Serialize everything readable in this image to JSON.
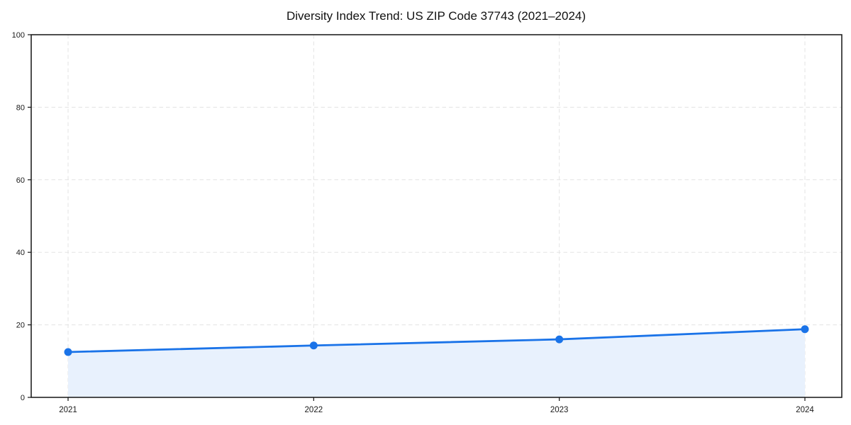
{
  "chart_data": {
    "type": "line",
    "title": "Diversity Index Trend: US ZIP Code 37743 (2021–2024)",
    "categories": [
      "2021",
      "2022",
      "2023",
      "2024"
    ],
    "series": [
      {
        "name": "Diversity Index",
        "values": [
          12.5,
          14.3,
          16.0,
          18.8
        ]
      }
    ],
    "xlabel": "",
    "ylabel": "",
    "ylim": [
      0,
      100
    ],
    "yticks": [
      0,
      20,
      40,
      60,
      80,
      100
    ],
    "grid": "dashed both axes",
    "legend": "none",
    "marker": "circle",
    "colors": {
      "line": "#1a73e8",
      "marker": "#1a73e8",
      "area_fill": "#e8f1fd",
      "gridline": "#e3e3e3",
      "spine": "#141414",
      "text": "#1a1a1a"
    }
  }
}
